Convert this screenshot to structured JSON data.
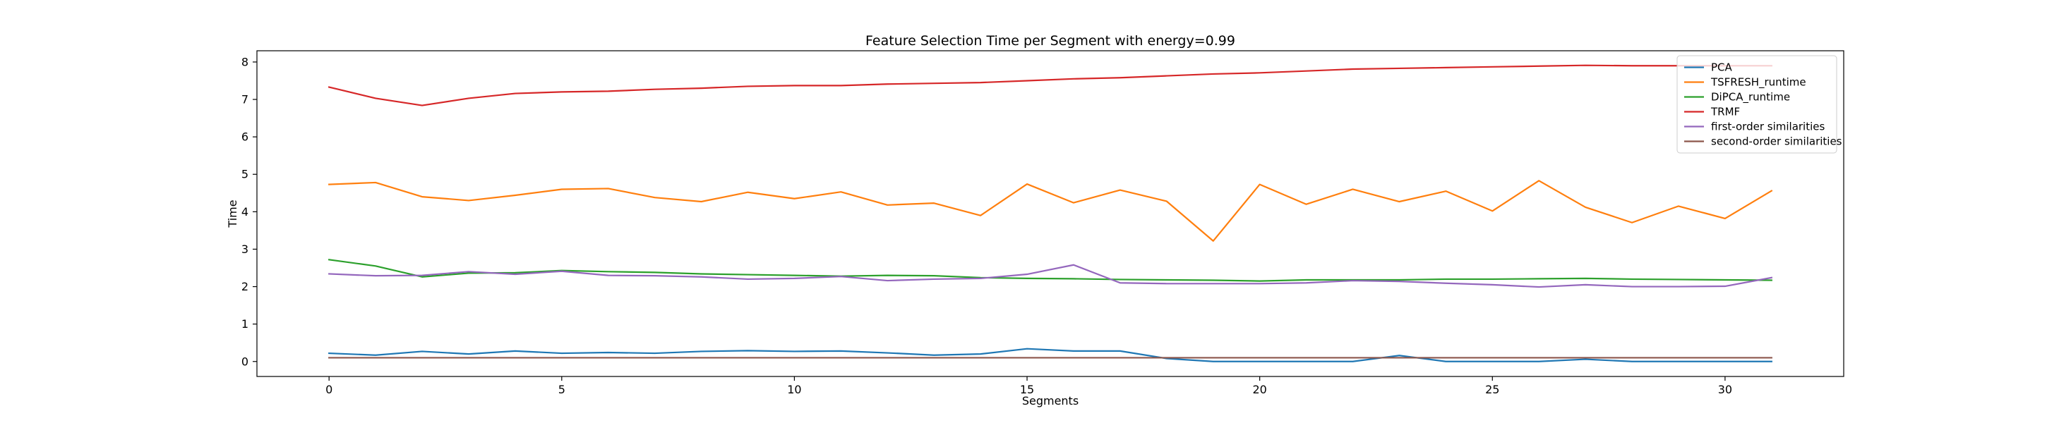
{
  "chart_data": {
    "type": "line",
    "title": "Feature Selection Time per Segment with energy=0.99",
    "xlabel": "Segments",
    "ylabel": "Time",
    "xlim": [
      -1.55,
      32.55
    ],
    "ylim": [
      -0.4,
      8.3
    ],
    "xticks": [
      0,
      5,
      10,
      15,
      20,
      25,
      30
    ],
    "yticks": [
      0,
      1,
      2,
      3,
      4,
      5,
      6,
      7,
      8
    ],
    "grid": false,
    "legend_position": "top-right",
    "x": [
      0,
      1,
      2,
      3,
      4,
      5,
      6,
      7,
      8,
      9,
      10,
      11,
      12,
      13,
      14,
      15,
      16,
      17,
      18,
      19,
      20,
      21,
      22,
      23,
      24,
      25,
      26,
      27,
      28,
      29,
      30,
      31
    ],
    "series": [
      {
        "name": "PCA",
        "color": "#1f77b4",
        "values": [
          0.22,
          0.17,
          0.27,
          0.2,
          0.28,
          0.22,
          0.24,
          0.22,
          0.27,
          0.29,
          0.27,
          0.28,
          0.23,
          0.17,
          0.2,
          0.34,
          0.28,
          0.28,
          0.08,
          0.0,
          0.0,
          0.0,
          0.0,
          0.16,
          0.0,
          0.0,
          0.0,
          0.06,
          0.0,
          0.0,
          0.0,
          0.0
        ]
      },
      {
        "name": "TSFRESH_runtime",
        "color": "#ff7f0e",
        "values": [
          4.73,
          4.78,
          4.4,
          4.3,
          4.44,
          4.6,
          4.62,
          4.38,
          4.27,
          4.52,
          4.35,
          4.53,
          4.18,
          4.23,
          3.9,
          4.74,
          4.24,
          4.58,
          4.28,
          3.22,
          4.73,
          4.2,
          4.6,
          4.27,
          4.55,
          4.02,
          4.83,
          4.12,
          3.71,
          4.15,
          3.82,
          4.56
        ]
      },
      {
        "name": "DiPCA_runtime",
        "color": "#2ca02c",
        "values": [
          2.72,
          2.55,
          2.26,
          2.36,
          2.37,
          2.43,
          2.4,
          2.38,
          2.34,
          2.32,
          2.3,
          2.28,
          2.3,
          2.29,
          2.24,
          2.22,
          2.21,
          2.19,
          2.18,
          2.17,
          2.15,
          2.18,
          2.18,
          2.18,
          2.2,
          2.2,
          2.21,
          2.22,
          2.2,
          2.19,
          2.18,
          2.17
        ]
      },
      {
        "name": "TRMF",
        "color": "#d62728",
        "values": [
          7.33,
          7.03,
          6.84,
          7.03,
          7.16,
          7.2,
          7.22,
          7.27,
          7.3,
          7.35,
          7.37,
          7.37,
          7.41,
          7.43,
          7.45,
          7.5,
          7.55,
          7.58,
          7.63,
          7.68,
          7.71,
          7.76,
          7.81,
          7.83,
          7.85,
          7.87,
          7.89,
          7.91,
          7.9,
          7.9,
          7.9,
          7.9
        ]
      },
      {
        "name": "first-order similarities",
        "color": "#9467bd",
        "values": [
          2.34,
          2.29,
          2.3,
          2.4,
          2.33,
          2.41,
          2.3,
          2.29,
          2.26,
          2.2,
          2.22,
          2.27,
          2.16,
          2.2,
          2.22,
          2.33,
          2.58,
          2.1,
          2.08,
          2.08,
          2.08,
          2.1,
          2.16,
          2.14,
          2.09,
          2.05,
          1.99,
          2.05,
          2.0,
          2.0,
          2.01,
          2.24
        ]
      },
      {
        "name": "second-order similarities",
        "color": "#8c564b",
        "values": [
          0.1,
          0.1,
          0.1,
          0.1,
          0.1,
          0.1,
          0.1,
          0.1,
          0.1,
          0.1,
          0.1,
          0.1,
          0.1,
          0.1,
          0.1,
          0.1,
          0.1,
          0.1,
          0.1,
          0.1,
          0.1,
          0.1,
          0.1,
          0.1,
          0.1,
          0.1,
          0.1,
          0.1,
          0.1,
          0.1,
          0.1,
          0.1
        ]
      }
    ]
  }
}
